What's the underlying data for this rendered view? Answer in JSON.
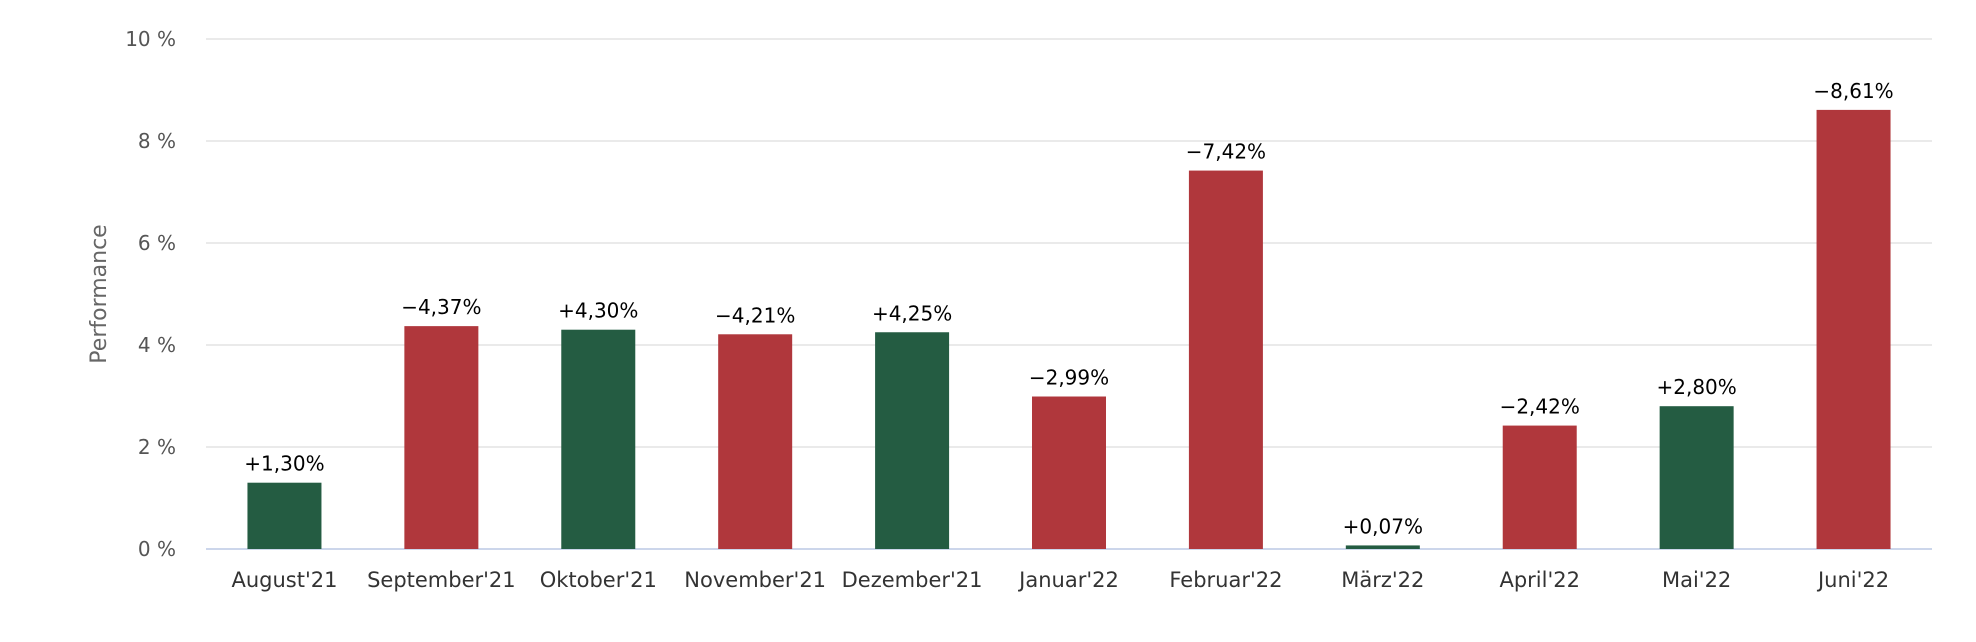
{
  "chart_data": {
    "type": "bar",
    "title": "",
    "xlabel": "",
    "ylabel": "Performance",
    "ylim": [
      0,
      10
    ],
    "yticks": [
      0,
      2,
      4,
      6,
      8,
      10
    ],
    "ytick_labels": [
      "0 %",
      "2 %",
      "4 %",
      "6 %",
      "8 %",
      "10 %"
    ],
    "grid": true,
    "categories": [
      "August'21",
      "September'21",
      "Oktober'21",
      "November'21",
      "Dezember'21",
      "Januar'22",
      "Februar'22",
      "März'22",
      "April'22",
      "Mai'22",
      "Juni'22"
    ],
    "values": [
      1.3,
      4.37,
      4.3,
      4.21,
      4.25,
      2.99,
      7.42,
      0.07,
      2.42,
      2.8,
      8.61
    ],
    "data_labels": [
      "+1,30%",
      "−4,37%",
      "+4,30%",
      "−4,21%",
      "+4,25%",
      "−2,99%",
      "−7,42%",
      "+0,07%",
      "−2,42%",
      "+2,80%",
      "−8,61%"
    ],
    "bar_colors": [
      "#245c42",
      "#b0373c",
      "#245c42",
      "#b0373c",
      "#245c42",
      "#b0373c",
      "#b0373c",
      "#245c42",
      "#b0373c",
      "#245c42",
      "#b0373c"
    ]
  }
}
